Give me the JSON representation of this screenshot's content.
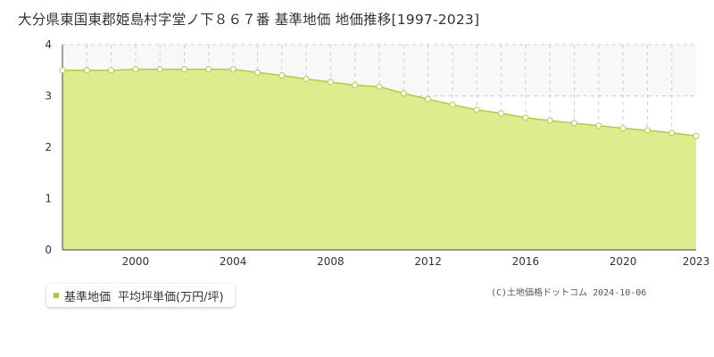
{
  "title": "大分県東国東郡姫島村字堂ノ下８６７番 基準地価 地価推移[1997-2023]",
  "legend": {
    "item": "基準地価",
    "unit": "平均坪単価(万円/坪)"
  },
  "credit": {
    "source": "(C)土地価格ドットコム",
    "date": "2024-10-06"
  },
  "colors": {
    "fill": "#dcec8f",
    "line": "#a8cf4a",
    "swatch": "#a3cf3a",
    "grid": "#cfcfcf",
    "band": "#f8f8f8",
    "axis": "#444444"
  },
  "chart_data": {
    "type": "area",
    "x": [
      1997,
      1998,
      1999,
      2000,
      2001,
      2002,
      2003,
      2004,
      2005,
      2006,
      2007,
      2008,
      2009,
      2010,
      2011,
      2012,
      2013,
      2014,
      2015,
      2016,
      2017,
      2018,
      2019,
      2020,
      2021,
      2022,
      2023
    ],
    "series": [
      {
        "name": "基準地価",
        "values": [
          3.5,
          3.5,
          3.5,
          3.52,
          3.52,
          3.52,
          3.52,
          3.52,
          3.46,
          3.4,
          3.33,
          3.27,
          3.21,
          3.18,
          3.05,
          2.94,
          2.83,
          2.73,
          2.66,
          2.58,
          2.52,
          2.47,
          2.42,
          2.37,
          2.33,
          2.28,
          2.22
        ]
      }
    ],
    "xlim": [
      1997,
      2023
    ],
    "ylim": [
      0,
      4
    ],
    "yticks": [
      0,
      1,
      2,
      3,
      4
    ],
    "xticks": [
      2000,
      2004,
      2008,
      2012,
      2016,
      2020,
      2023
    ],
    "xlabel": "",
    "ylabel": "",
    "grid": true
  }
}
